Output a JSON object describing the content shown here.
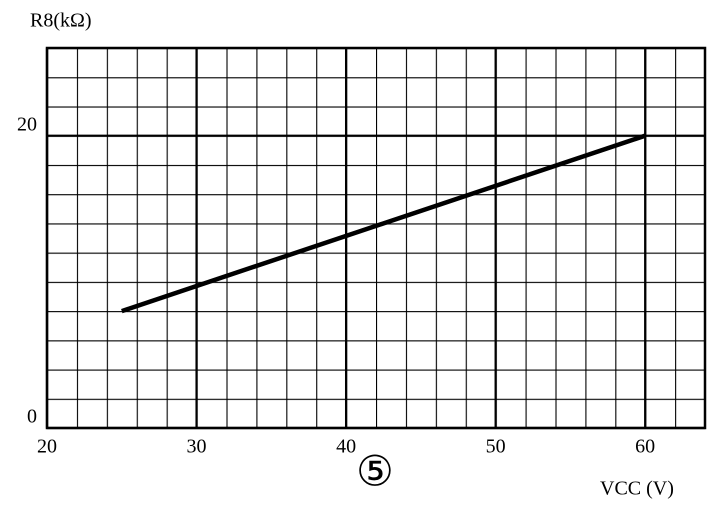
{
  "chart_data": {
    "type": "line",
    "title": "R8(kΩ)",
    "x_label": "VCC (V)",
    "annotation": "⑤",
    "x": [
      25,
      60
    ],
    "series": [
      {
        "name": "R8",
        "color": "#000000",
        "values": [
          8,
          20
        ]
      }
    ],
    "xlim": [
      20,
      64
    ],
    "xticks": [
      20,
      30,
      40,
      50,
      60
    ],
    "ylim": [
      0,
      26
    ],
    "yticks": [
      0,
      20
    ],
    "grid": true
  }
}
